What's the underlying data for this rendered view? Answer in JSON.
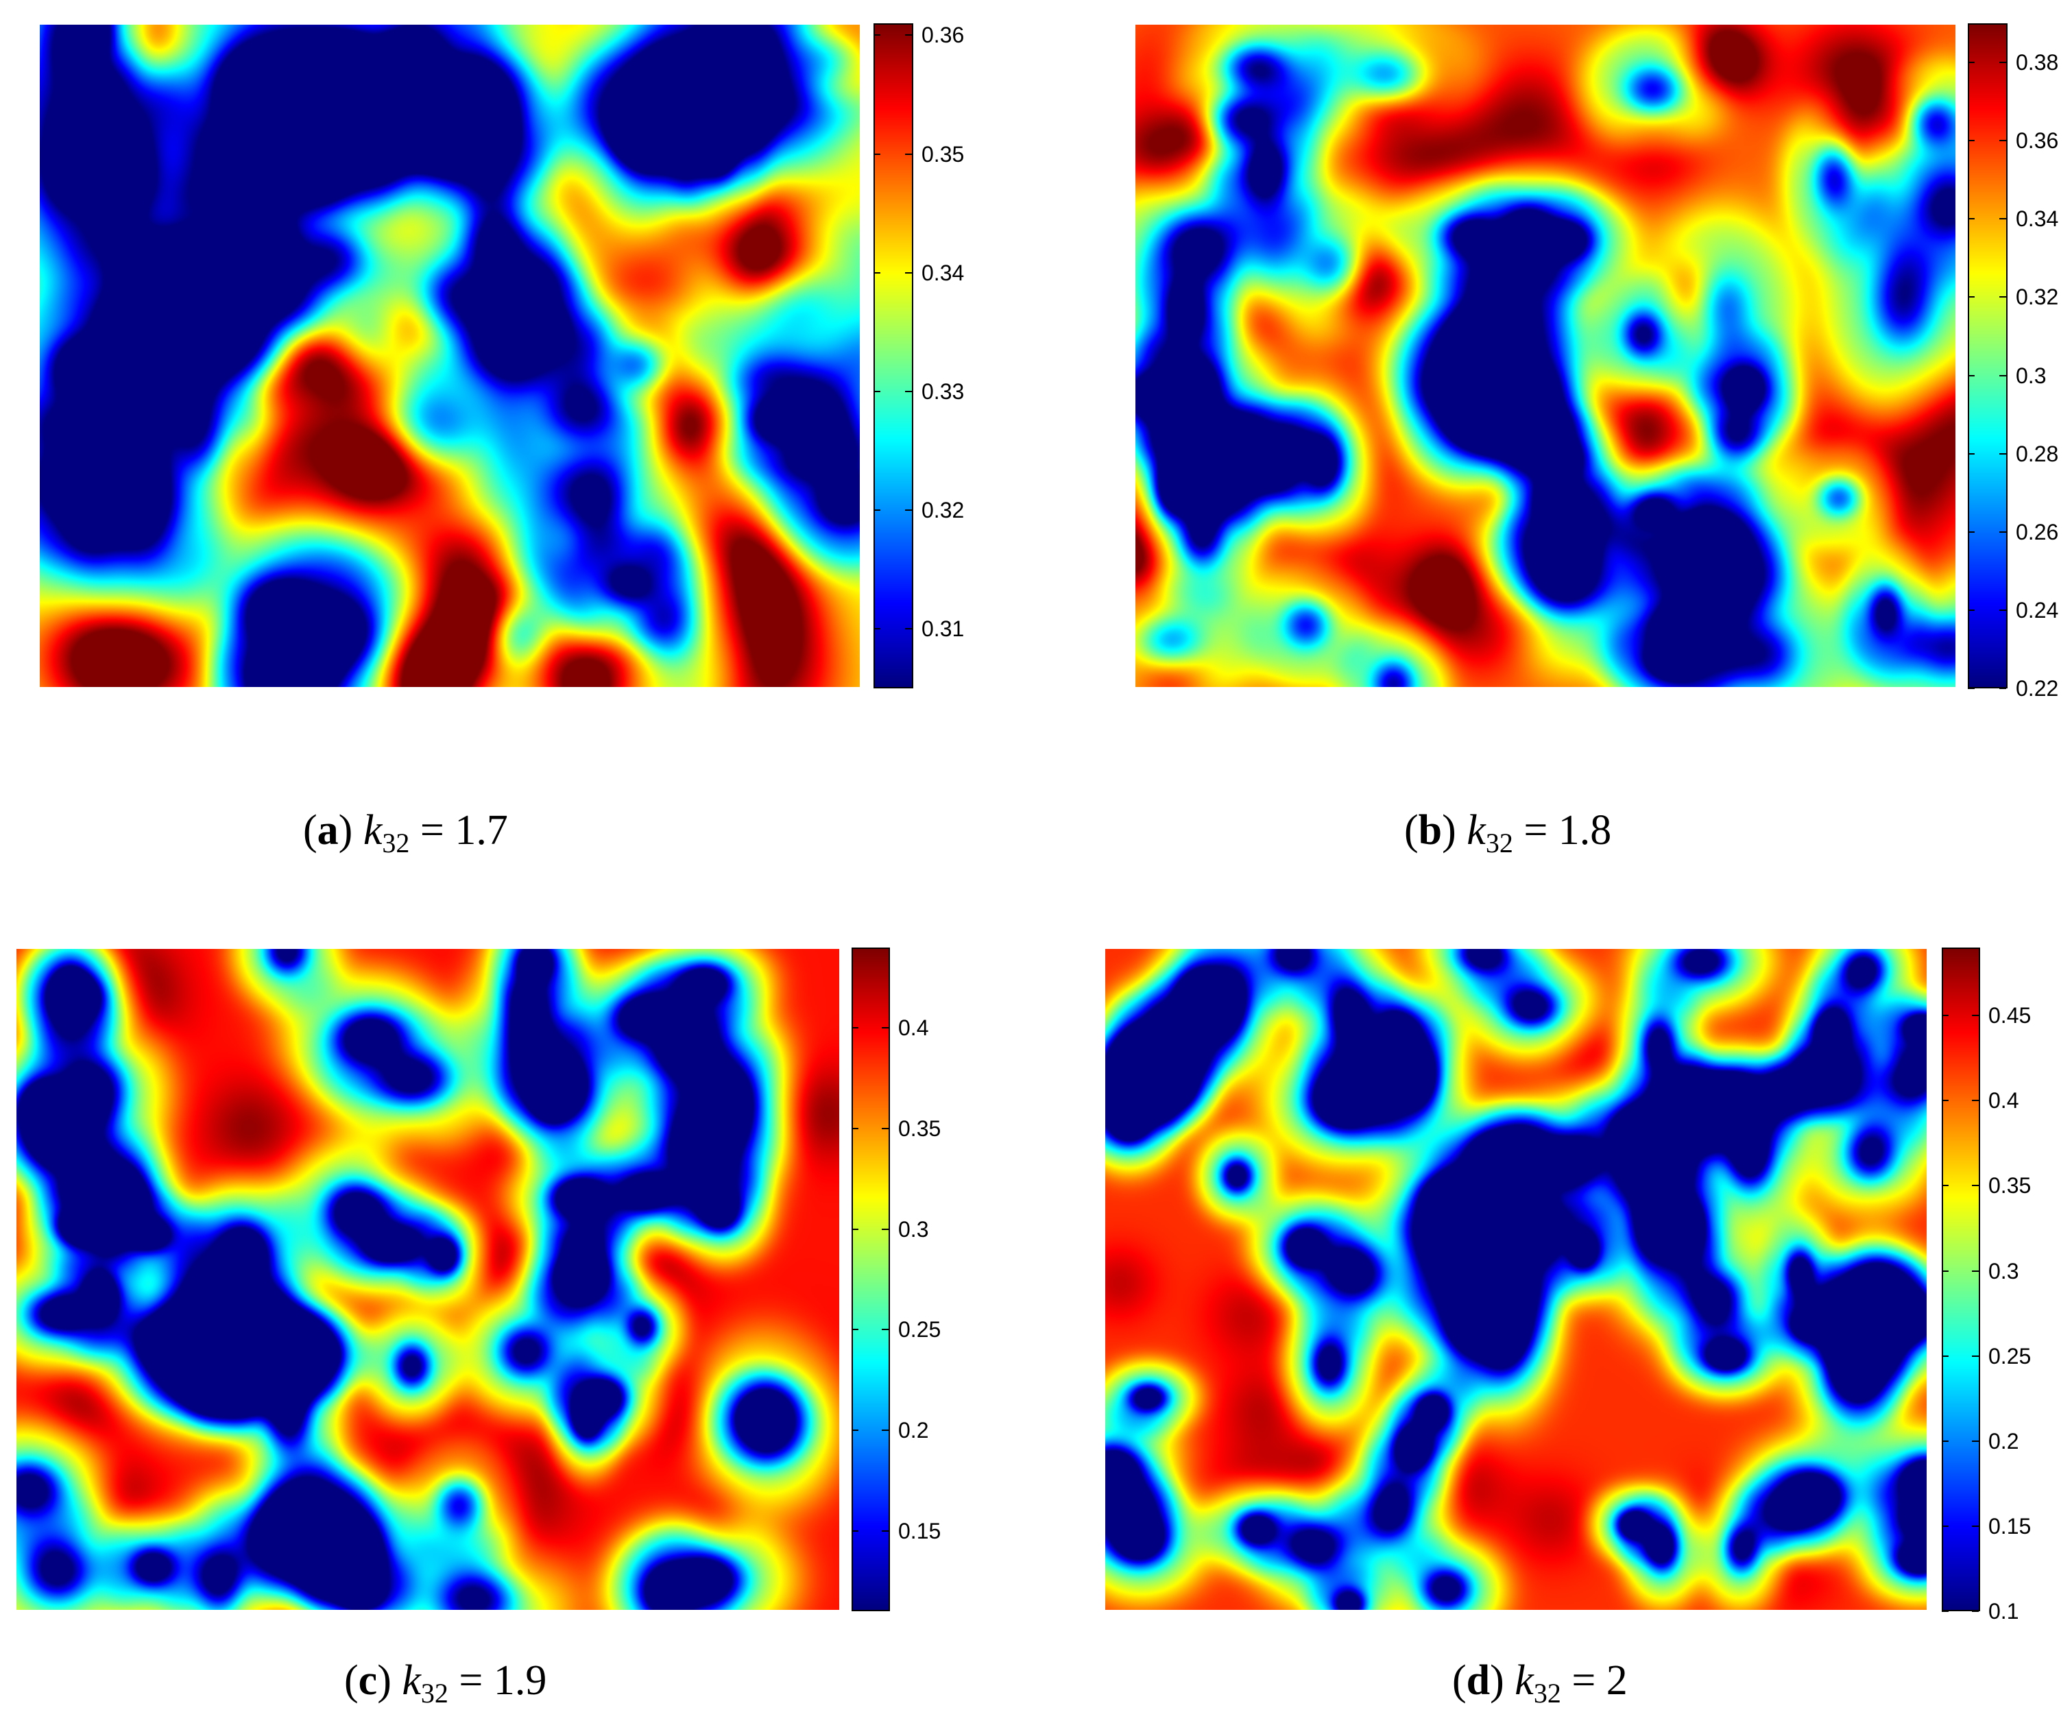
{
  "chart_data": [
    {
      "type": "heatmap",
      "panel_label": "a",
      "variable": "k",
      "subscript": "32",
      "equals": "=",
      "value": "1.7",
      "colorbar_ticks": [
        "0.31",
        "0.32",
        "0.33",
        "0.34",
        "0.35",
        "0.36"
      ],
      "clim": [
        0.305,
        0.361
      ],
      "colormap": "jet"
    },
    {
      "type": "heatmap",
      "panel_label": "b",
      "variable": "k",
      "subscript": "32",
      "equals": "=",
      "value": "1.8",
      "colorbar_ticks": [
        "0.22",
        "0.24",
        "0.26",
        "0.28",
        "0.3",
        "0.32",
        "0.34",
        "0.36",
        "0.38"
      ],
      "clim": [
        0.22,
        0.39
      ],
      "colormap": "jet"
    },
    {
      "type": "heatmap",
      "panel_label": "c",
      "variable": "k",
      "subscript": "32",
      "equals": "=",
      "value": "1.9",
      "colorbar_ticks": [
        "0.15",
        "0.2",
        "0.25",
        "0.3",
        "0.35",
        "0.4"
      ],
      "clim": [
        0.11,
        0.44
      ],
      "colormap": "jet"
    },
    {
      "type": "heatmap",
      "panel_label": "d",
      "variable": "k",
      "subscript": "32",
      "equals": "=",
      "value": "2",
      "colorbar_ticks": [
        "0.1",
        "0.15",
        "0.2",
        "0.25",
        "0.3",
        "0.35",
        "0.4",
        "0.45"
      ],
      "clim": [
        0.1,
        0.49
      ],
      "colormap": "jet"
    }
  ]
}
